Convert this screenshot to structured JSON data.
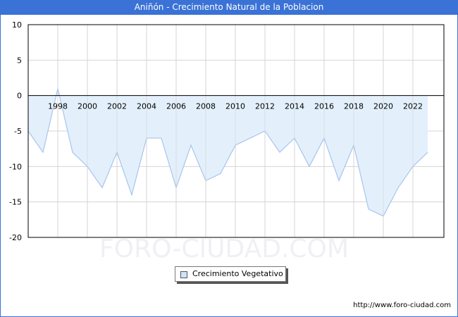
{
  "header": {
    "title": "Aniñón - Crecimiento Natural de la Poblacion"
  },
  "watermark": "FORO-CIUDAD.COM",
  "footer": {
    "url": "http://www.foro-ciudad.com"
  },
  "legend": {
    "label": "Crecimiento Vegetativo"
  },
  "colors": {
    "title_bar": "#3a72d6",
    "fill": "#e3f0fc",
    "line": "#a8c4ec",
    "grid": "#d4d4d4"
  },
  "chart_data": {
    "type": "area",
    "title": "Aniñón - Crecimiento Natural de la Poblacion",
    "xlabel": "",
    "ylabel": "",
    "ylim": [
      -20,
      10
    ],
    "yticks": [
      10,
      5,
      0,
      -5,
      -10,
      -15,
      -20
    ],
    "xtick_labels": [
      "1998",
      "2000",
      "2002",
      "2004",
      "2006",
      "2008",
      "2010",
      "2012",
      "2014",
      "2016",
      "2018",
      "2020",
      "2022"
    ],
    "grid": true,
    "legend_position": "bottom",
    "series": [
      {
        "name": "Crecimiento Vegetativo",
        "x": [
          1996,
          1997,
          1998,
          1999,
          2000,
          2001,
          2002,
          2003,
          2004,
          2005,
          2006,
          2007,
          2008,
          2009,
          2010,
          2011,
          2012,
          2013,
          2014,
          2015,
          2016,
          2017,
          2018,
          2019,
          2020,
          2021,
          2022,
          2023
        ],
        "values": [
          -5,
          -8,
          1,
          -8,
          -10,
          -13,
          -8,
          -14,
          -6,
          -6,
          -13,
          -7,
          -12,
          -11,
          -7,
          -6,
          -5,
          -8,
          -6,
          -10,
          -6,
          -12,
          -7,
          -16,
          -17,
          -13,
          -10,
          -8
        ]
      }
    ]
  }
}
